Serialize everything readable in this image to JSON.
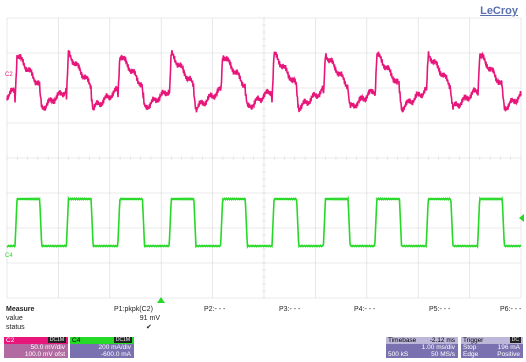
{
  "brand": "LeCroy",
  "channel_markers": {
    "c2": "C2",
    "c4": "C4"
  },
  "measure": {
    "title": "Measure",
    "row_labels": [
      "value",
      "status"
    ],
    "params": [
      {
        "name": "P1:pkpk(C2)",
        "value": "91 mV",
        "status": "✔"
      },
      {
        "name": "P2:- - -"
      },
      {
        "name": "P3:- - -"
      },
      {
        "name": "P4:- - -"
      },
      {
        "name": "P5:- - -"
      },
      {
        "name": "P6:- - -"
      }
    ]
  },
  "channels": [
    {
      "id": "C2",
      "badge": "DC1M",
      "scale": "50.0 mV/div",
      "offset": "100.0 mV ofst",
      "color": "#e8157a"
    },
    {
      "id": "C4",
      "badge": "DC1M",
      "scale": "200 mA/div",
      "offset": "-600.0 mA",
      "color": "#26d926"
    }
  ],
  "timebase": {
    "label": "Timebase",
    "delay": "-2.12 ms",
    "per_div": "1.00 ms/div",
    "samples": "500 kS",
    "rate": "50 MS/s"
  },
  "trigger": {
    "label": "Trigger",
    "badge": "DC",
    "mode": "Stop",
    "level": "196 mA",
    "type": "Edge",
    "slope": "Positive"
  },
  "colors": {
    "grid": "#d8d8d8",
    "channel2": "#e8157a",
    "channel4": "#26d926",
    "info_panel": "#7a72b0"
  },
  "waveforms": {
    "period_divisions": 1.0,
    "c2": {
      "description": "square-wave-like ripple with spikes at edges"
    },
    "c4": {
      "description": "square wave"
    }
  }
}
